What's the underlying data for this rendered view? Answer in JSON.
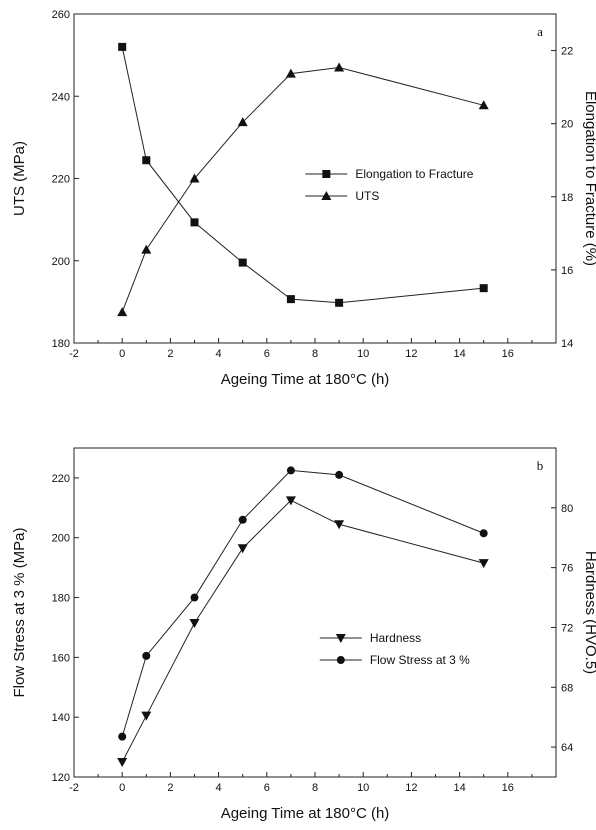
{
  "chart_data": [
    {
      "type": "line",
      "panel_label": "a",
      "xlabel": "Ageing Time at 180°C (h)",
      "ylabel_left": "UTS (MPa)",
      "ylabel_right": "Elongation to Fracture (%)",
      "xlim": [
        -2,
        18
      ],
      "ylim_left": [
        180,
        260
      ],
      "ylim_right": [
        14,
        23
      ],
      "x_ticks": [
        -2,
        0,
        2,
        4,
        6,
        8,
        10,
        12,
        14,
        16
      ],
      "y_ticks_left": [
        180,
        200,
        220,
        240,
        260
      ],
      "y_ticks_right": [
        14,
        16,
        18,
        20,
        22
      ],
      "legend_position": "center-right",
      "series": [
        {
          "name": "Elongation to Fracture",
          "axis": "right",
          "marker": "square",
          "x": [
            0,
            1,
            3,
            5,
            7,
            9,
            15
          ],
          "y": [
            22.1,
            19.0,
            17.3,
            16.2,
            15.2,
            15.1,
            15.5
          ]
        },
        {
          "name": "UTS",
          "axis": "left",
          "marker": "triangle-up",
          "x": [
            0,
            1,
            3,
            5,
            7,
            9,
            15
          ],
          "y": [
            187.5,
            202.7,
            220.0,
            233.7,
            245.5,
            247.0,
            237.8
          ]
        }
      ]
    },
    {
      "type": "line",
      "panel_label": "b",
      "xlabel": "Ageing Time at 180°C (h)",
      "ylabel_left": "Flow Stress at 3 % (MPa)",
      "ylabel_right": "Hardness (HVO.5)",
      "xlim": [
        -2,
        18
      ],
      "ylim_left": [
        120,
        230
      ],
      "ylim_right": [
        62,
        84
      ],
      "x_ticks": [
        -2,
        0,
        2,
        4,
        6,
        8,
        10,
        12,
        14,
        16
      ],
      "y_ticks_left": [
        120,
        140,
        160,
        180,
        200,
        220
      ],
      "y_ticks_right": [
        64,
        68,
        72,
        76,
        80
      ],
      "legend_position": "lower-center",
      "series": [
        {
          "name": "Hardness",
          "axis": "left",
          "marker": "triangle-down",
          "x": [
            0,
            1,
            3,
            5,
            7,
            9,
            15
          ],
          "y": [
            125,
            140.5,
            171.5,
            196.5,
            212.5,
            204.5,
            191.5
          ]
        },
        {
          "name": "Flow Stress at 3 %",
          "axis": "left",
          "marker": "circle",
          "x": [
            0,
            1,
            3,
            5,
            7,
            9,
            15
          ],
          "y": [
            133.5,
            160.5,
            180.0,
            206.0,
            222.5,
            221.0,
            201.5
          ]
        }
      ]
    }
  ]
}
